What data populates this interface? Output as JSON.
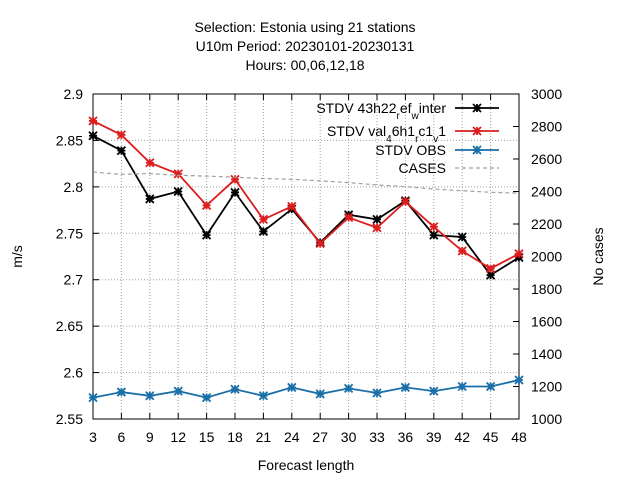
{
  "chart_data": {
    "type": "line",
    "title_lines": [
      "Selection: Estonia using    21 stations",
      "U10m   Period: 20230101-20230131",
      "Hours:  00,06,12,18"
    ],
    "xlabel": "Forecast length",
    "ylabel": "m/s",
    "y2label": "No cases",
    "x": [
      3,
      6,
      9,
      12,
      15,
      18,
      21,
      24,
      27,
      30,
      33,
      36,
      39,
      42,
      45,
      48
    ],
    "xlim": [
      3,
      48
    ],
    "ylim": [
      2.55,
      2.9
    ],
    "y2lim": [
      1000,
      3000
    ],
    "yticks": [
      "2.55",
      "2.6",
      "2.65",
      "2.7",
      "2.75",
      "2.8",
      "2.85",
      "2.9"
    ],
    "y2ticks": [
      "1000",
      "1200",
      "1400",
      "1600",
      "1800",
      "2000",
      "2200",
      "2400",
      "2600",
      "2800",
      "3000"
    ],
    "grid": true,
    "legend_position": "top-right",
    "series": [
      {
        "name": "STDV 43h22_ref_winter",
        "legend": {
          "parts": [
            [
              "STDV 43h22",
              "base"
            ],
            [
              "r",
              "sub"
            ],
            [
              "ef",
              "base"
            ],
            [
              "w",
              "sub"
            ],
            [
              "inter",
              "base"
            ]
          ]
        },
        "color": "#000000",
        "axis": "y",
        "values": [
          2.855,
          2.839,
          2.787,
          2.795,
          2.748,
          2.794,
          2.752,
          2.776,
          2.74,
          2.77,
          2.765,
          2.785,
          2.748,
          2.746,
          2.705,
          2.724
        ]
      },
      {
        "name": "STDV val_46h1_rc1_v1",
        "legend": {
          "parts": [
            [
              "STDV val",
              "base"
            ],
            [
              "4",
              "sub"
            ],
            [
              "6h1",
              "base"
            ],
            [
              "r",
              "sub"
            ],
            [
              "c1",
              "base"
            ],
            [
              "v",
              "sub"
            ],
            [
              "1",
              "base"
            ]
          ]
        },
        "color": "#dd1e1e",
        "axis": "y",
        "values": [
          2.871,
          2.856,
          2.826,
          2.814,
          2.78,
          2.808,
          2.765,
          2.779,
          2.739,
          2.767,
          2.756,
          2.784,
          2.757,
          2.731,
          2.712,
          2.728
        ]
      },
      {
        "name": "STDV OBS",
        "legend": {
          "parts": [
            [
              "STDV OBS",
              "base"
            ]
          ]
        },
        "color": "#1a6fa8",
        "axis": "y",
        "values": [
          2.573,
          2.579,
          2.575,
          2.58,
          2.573,
          2.582,
          2.575,
          2.584,
          2.577,
          2.583,
          2.578,
          2.584,
          2.58,
          2.585,
          2.585,
          2.592
        ]
      },
      {
        "name": "CASES",
        "legend": {
          "parts": [
            [
              "CASES",
              "base"
            ]
          ]
        },
        "color": "#a0a0a0",
        "axis": "y2",
        "dashed": true,
        "values": [
          2520,
          2505,
          2510,
          2500,
          2495,
          2488,
          2480,
          2475,
          2465,
          2455,
          2440,
          2430,
          2415,
          2405,
          2395,
          2390
        ]
      }
    ]
  }
}
